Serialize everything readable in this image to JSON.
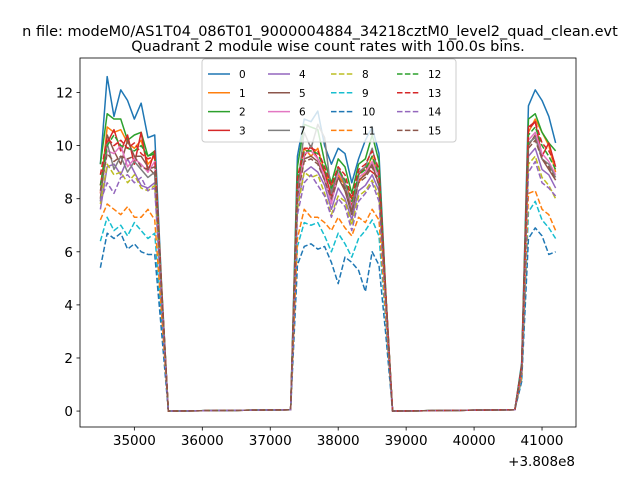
{
  "chart_data": {
    "type": "line",
    "suptitle": "n file: modeM0/AS1T04_086T01_9000004884_34218cztM0_level2_quad_clean.evt",
    "title": "Quadrant 2 module wise count rates with 100.0s bins.",
    "xlabel": "",
    "ylabel": "",
    "x_offset_label": "+3.808e8",
    "x_offset": 380800000,
    "xlim": [
      34200,
      41500
    ],
    "ylim": [
      -0.6,
      13.3
    ],
    "xticks": [
      35000,
      36000,
      37000,
      38000,
      39000,
      40000,
      41000
    ],
    "xtick_labels": [
      "35000",
      "36000",
      "37000",
      "38000",
      "39000",
      "40000",
      "41000"
    ],
    "yticks": [
      0,
      2,
      4,
      6,
      8,
      10,
      12
    ],
    "ytick_labels": [
      "0",
      "2",
      "4",
      "6",
      "8",
      "10",
      "12"
    ],
    "grid": false,
    "legend_position": "top-center",
    "x": [
      34500,
      34600,
      34700,
      34800,
      34900,
      35000,
      35100,
      35200,
      35300,
      35400,
      35500,
      37300,
      37400,
      37500,
      37600,
      37700,
      37800,
      37900,
      38000,
      38100,
      38200,
      38300,
      38400,
      38500,
      38600,
      38700,
      38800,
      40600,
      40700,
      40800,
      40900,
      41000,
      41100,
      41200
    ],
    "series": [
      {
        "name": "0",
        "style": "solid",
        "color": "#1f77b4",
        "values": [
          9.3,
          12.6,
          11.1,
          12.1,
          11.7,
          11.0,
          11.6,
          10.3,
          10.4,
          4.8,
          0.0,
          0.05,
          9.6,
          11.0,
          10.9,
          11.3,
          10.0,
          9.3,
          9.9,
          9.7,
          8.6,
          9.5,
          10.2,
          10.7,
          9.7,
          4.5,
          0.0,
          0.05,
          1.8,
          11.5,
          12.1,
          11.7,
          11.1,
          10.1
        ]
      },
      {
        "name": "1",
        "style": "solid",
        "color": "#ff7f0e",
        "values": [
          8.2,
          10.7,
          10.5,
          10.6,
          10.1,
          9.9,
          10.2,
          9.3,
          9.6,
          4.6,
          0.0,
          0.05,
          8.6,
          9.9,
          9.6,
          9.9,
          9.0,
          8.5,
          8.9,
          8.5,
          8.0,
          8.6,
          9.0,
          9.6,
          8.8,
          4.4,
          0.0,
          0.05,
          1.6,
          10.5,
          11.0,
          10.5,
          10.0,
          9.0
        ]
      },
      {
        "name": "2",
        "style": "solid",
        "color": "#2ca02c",
        "values": [
          9.3,
          11.2,
          11.0,
          11.0,
          10.2,
          10.4,
          10.5,
          9.6,
          9.8,
          4.6,
          0.0,
          0.05,
          9.2,
          10.8,
          10.7,
          10.6,
          9.4,
          8.6,
          9.5,
          9.2,
          8.2,
          9.3,
          9.5,
          10.4,
          9.4,
          4.4,
          0.0,
          0.05,
          1.7,
          11.0,
          11.2,
          10.5,
          10.1,
          9.8
        ]
      },
      {
        "name": "3",
        "style": "solid",
        "color": "#d62728",
        "values": [
          8.5,
          10.1,
          10.6,
          9.8,
          10.4,
          9.3,
          10.5,
          9.0,
          9.8,
          4.6,
          0.0,
          0.05,
          8.5,
          9.6,
          10.0,
          9.5,
          9.0,
          8.1,
          9.2,
          8.6,
          7.7,
          8.9,
          9.2,
          9.0,
          8.8,
          4.3,
          0.0,
          0.05,
          1.6,
          10.7,
          10.9,
          9.6,
          10.1,
          9.2
        ]
      },
      {
        "name": "4",
        "style": "solid",
        "color": "#9467bd",
        "values": [
          7.6,
          9.2,
          9.3,
          8.9,
          9.5,
          9.0,
          8.5,
          8.4,
          8.6,
          4.3,
          0.0,
          0.05,
          7.8,
          9.0,
          9.2,
          9.0,
          8.5,
          7.6,
          8.4,
          8.0,
          7.2,
          8.3,
          8.5,
          8.9,
          8.3,
          4.2,
          0.0,
          0.05,
          1.5,
          9.6,
          9.9,
          9.1,
          8.9,
          8.4
        ]
      },
      {
        "name": "5",
        "style": "solid",
        "color": "#8c564b",
        "values": [
          8.0,
          10.4,
          9.8,
          9.3,
          10.2,
          9.6,
          9.6,
          9.2,
          8.9,
          4.4,
          0.0,
          0.05,
          8.2,
          9.5,
          9.6,
          9.4,
          8.7,
          7.9,
          8.8,
          8.3,
          7.4,
          8.7,
          8.9,
          9.3,
          8.5,
          4.3,
          0.0,
          0.05,
          1.6,
          10.0,
          10.4,
          9.5,
          9.1,
          8.7
        ]
      },
      {
        "name": "6",
        "style": "solid",
        "color": "#e377c2",
        "values": [
          8.2,
          9.8,
          9.7,
          10.0,
          9.2,
          9.5,
          9.3,
          9.0,
          9.4,
          4.5,
          0.0,
          0.05,
          8.0,
          9.7,
          9.8,
          9.5,
          8.8,
          7.8,
          9.0,
          8.6,
          7.6,
          8.8,
          9.0,
          9.4,
          8.8,
          4.3,
          0.0,
          0.05,
          1.6,
          10.2,
          10.5,
          9.7,
          9.4,
          8.9
        ]
      },
      {
        "name": "7",
        "style": "solid",
        "color": "#7f7f7f",
        "values": [
          7.9,
          10.1,
          9.1,
          9.6,
          9.0,
          9.4,
          9.1,
          8.8,
          9.0,
          4.4,
          0.0,
          0.05,
          8.4,
          10.5,
          9.9,
          10.8,
          10.3,
          8.2,
          9.2,
          8.5,
          7.5,
          9.0,
          9.2,
          9.9,
          8.9,
          4.3,
          0.0,
          0.05,
          1.6,
          10.1,
          10.3,
          9.5,
          9.3,
          8.8
        ]
      },
      {
        "name": "8",
        "style": "dashed",
        "color": "#bcbd22",
        "values": [
          7.8,
          9.3,
          8.9,
          9.0,
          8.6,
          8.9,
          8.4,
          8.3,
          8.5,
          4.2,
          0.0,
          0.05,
          7.6,
          9.0,
          8.8,
          8.9,
          8.2,
          7.4,
          8.1,
          7.9,
          7.0,
          8.1,
          8.3,
          8.7,
          8.1,
          4.1,
          0.0,
          0.05,
          1.5,
          9.3,
          9.6,
          8.8,
          8.5,
          8.0
        ]
      },
      {
        "name": "9",
        "style": "dashed",
        "color": "#17becf",
        "values": [
          6.4,
          7.3,
          6.8,
          7.0,
          6.6,
          7.1,
          6.8,
          6.5,
          6.7,
          3.4,
          0.0,
          0.05,
          6.2,
          7.1,
          7.0,
          7.1,
          6.6,
          6.0,
          6.7,
          6.3,
          5.8,
          6.5,
          6.8,
          7.2,
          6.6,
          3.4,
          0.0,
          0.05,
          1.2,
          7.5,
          7.9,
          7.2,
          6.9,
          6.5
        ]
      },
      {
        "name": "10",
        "style": "dashed",
        "color": "#1f77b4",
        "values": [
          5.4,
          6.7,
          6.5,
          6.7,
          6.1,
          6.3,
          6.0,
          5.9,
          5.9,
          3.0,
          0.0,
          0.05,
          5.5,
          6.2,
          6.3,
          6.1,
          6.2,
          5.6,
          4.8,
          5.8,
          5.6,
          5.3,
          4.5,
          6.0,
          5.5,
          2.9,
          0.0,
          0.05,
          1.1,
          6.5,
          6.9,
          6.6,
          5.9,
          6.0
        ]
      },
      {
        "name": "11",
        "style": "dashed",
        "color": "#ff7f0e",
        "values": [
          7.2,
          7.8,
          7.6,
          7.4,
          7.7,
          7.3,
          7.3,
          7.6,
          7.2,
          3.7,
          0.0,
          0.05,
          6.5,
          7.6,
          7.3,
          7.3,
          7.1,
          6.8,
          7.3,
          6.9,
          6.6,
          7.3,
          7.1,
          7.6,
          7.2,
          3.6,
          0.0,
          0.05,
          1.3,
          8.2,
          8.3,
          7.6,
          7.4,
          6.8
        ]
      },
      {
        "name": "12",
        "style": "dashed",
        "color": "#2ca02c",
        "values": [
          8.5,
          10.0,
          10.4,
          10.0,
          9.9,
          9.8,
          10.0,
          9.6,
          9.7,
          4.7,
          0.0,
          0.05,
          8.7,
          9.8,
          9.8,
          9.7,
          9.1,
          8.4,
          9.1,
          8.7,
          7.9,
          8.9,
          9.1,
          9.6,
          8.9,
          4.4,
          0.0,
          0.05,
          1.7,
          10.4,
          10.7,
          10.0,
          9.6,
          9.1
        ]
      },
      {
        "name": "13",
        "style": "dashed",
        "color": "#d62728",
        "values": [
          8.9,
          10.3,
          10.0,
          10.2,
          9.9,
          10.1,
          9.7,
          9.5,
          9.6,
          4.7,
          0.0,
          0.05,
          8.8,
          9.9,
          9.9,
          9.8,
          9.2,
          8.5,
          9.2,
          8.9,
          8.0,
          9.1,
          9.3,
          9.8,
          9.1,
          4.5,
          0.0,
          0.05,
          1.7,
          10.6,
          10.9,
          10.1,
          9.8,
          9.3
        ]
      },
      {
        "name": "14",
        "style": "dashed",
        "color": "#9467bd",
        "values": [
          7.9,
          8.6,
          8.2,
          8.8,
          8.9,
          8.6,
          8.8,
          8.3,
          8.4,
          4.2,
          0.0,
          0.05,
          7.4,
          8.6,
          8.9,
          8.5,
          8.1,
          7.3,
          8.0,
          7.7,
          6.8,
          7.9,
          8.2,
          8.6,
          7.9,
          4.0,
          0.0,
          0.05,
          1.5,
          9.0,
          9.4,
          8.6,
          8.4,
          8.1
        ]
      },
      {
        "name": "15",
        "style": "dashed",
        "color": "#8c564b",
        "values": [
          8.3,
          9.7,
          9.4,
          9.6,
          9.5,
          9.6,
          9.2,
          9.1,
          9.2,
          4.5,
          0.0,
          0.05,
          8.1,
          9.4,
          9.5,
          9.3,
          8.7,
          8.0,
          8.8,
          8.4,
          7.5,
          8.6,
          8.8,
          9.2,
          8.5,
          4.3,
          0.0,
          0.05,
          1.6,
          9.9,
          10.2,
          9.5,
          9.2,
          8.7
        ]
      }
    ]
  }
}
